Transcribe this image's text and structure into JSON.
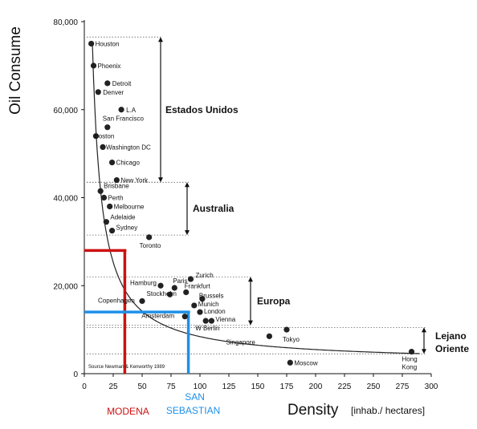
{
  "chart_data": {
    "type": "scatter",
    "title": "",
    "xlabel": "Density",
    "xlabel_unit": "[inhab./ hectares]",
    "ylabel": "Oil Consume",
    "xlim": [
      0,
      300
    ],
    "ylim": [
      0,
      80000
    ],
    "x_ticks": [
      0,
      25,
      50,
      75,
      100,
      125,
      150,
      175,
      200,
      225,
      250,
      275,
      300
    ],
    "y_ticks": [
      0,
      20000,
      40000,
      60000,
      80000
    ],
    "y_tick_labels": [
      "0",
      "20,000",
      "40,000",
      "60,000",
      "80,000"
    ],
    "points": [
      {
        "name": "Houston",
        "x": 6,
        "y": 75000
      },
      {
        "name": "Phoenix",
        "x": 8,
        "y": 70000
      },
      {
        "name": "Detroit",
        "x": 20,
        "y": 66000
      },
      {
        "name": "Denver",
        "x": 12,
        "y": 64000
      },
      {
        "name": "L.A",
        "x": 32,
        "y": 60000
      },
      {
        "name": "San Francisco",
        "x": 20,
        "y": 56000
      },
      {
        "name": "Boston",
        "x": 10,
        "y": 54000
      },
      {
        "name": "Washington DC",
        "x": 16,
        "y": 51500
      },
      {
        "name": "Chicago",
        "x": 24,
        "y": 48000
      },
      {
        "name": "New York",
        "x": 28,
        "y": 44000
      },
      {
        "name": "Brisbane",
        "x": 14,
        "y": 41500
      },
      {
        "name": "Perth",
        "x": 17,
        "y": 40000
      },
      {
        "name": "Melbourne",
        "x": 22,
        "y": 38000
      },
      {
        "name": "Adelaide",
        "x": 19,
        "y": 34500
      },
      {
        "name": "Sydney",
        "x": 24,
        "y": 32500
      },
      {
        "name": "Toronto",
        "x": 56,
        "y": 31000
      },
      {
        "name": "Hamburg",
        "x": 66,
        "y": 20000
      },
      {
        "name": "Paris",
        "x": 78,
        "y": 19500
      },
      {
        "name": "Zurich",
        "x": 92,
        "y": 21500
      },
      {
        "name": "Frankfurt",
        "x": 88,
        "y": 18500
      },
      {
        "name": "Stockholm",
        "x": 74,
        "y": 18000
      },
      {
        "name": "Brussels",
        "x": 102,
        "y": 17000
      },
      {
        "name": "Copenhagen",
        "x": 50,
        "y": 16500
      },
      {
        "name": "Munich",
        "x": 95,
        "y": 15500
      },
      {
        "name": "London",
        "x": 100,
        "y": 14000
      },
      {
        "name": "Amsterdam",
        "x": 87,
        "y": 13000
      },
      {
        "name": "W Berlin",
        "x": 105,
        "y": 12000
      },
      {
        "name": "Vienna",
        "x": 110,
        "y": 12000
      },
      {
        "name": "Tokyo",
        "x": 175,
        "y": 10000
      },
      {
        "name": "Singapore",
        "x": 160,
        "y": 8500
      },
      {
        "name": "Moscow",
        "x": 178,
        "y": 2500
      },
      {
        "name": "Hong Kong",
        "x": 283,
        "y": 5000
      }
    ],
    "groups": [
      {
        "name": "Estados Unidos",
        "y_range": [
          43500,
          76500
        ]
      },
      {
        "name": "Australia",
        "y_range": [
          31500,
          43500
        ]
      },
      {
        "name": "Europa",
        "y_range": [
          11000,
          22000
        ]
      },
      {
        "name": "Lejano Oriente",
        "y_range": [
          4500,
          10500
        ]
      }
    ],
    "reference_lines": [
      {
        "name": "MODENA",
        "x": 35,
        "y": 28000,
        "color": "#cc1111"
      },
      {
        "name": "SAN SEBASTIAN",
        "name_lines": [
          "SAN",
          "SEBASTIAN"
        ],
        "x": 90,
        "y": 14000,
        "color": "#1e90e8"
      }
    ],
    "source": "Source  Newman & Kenworthy 1989",
    "grid": false
  }
}
